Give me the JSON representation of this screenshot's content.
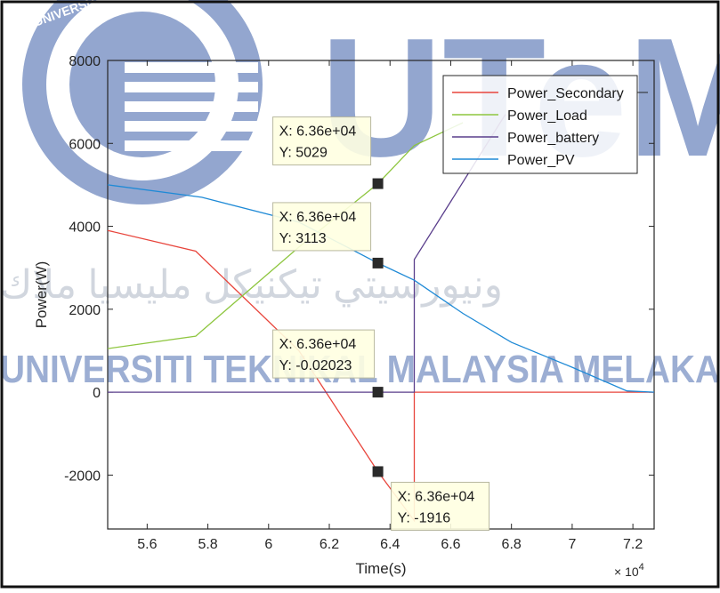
{
  "watermark": {
    "logo_text": "UTeM",
    "seal_text": "UNIVERSITI TEKNIKAL MALAYSIA MELAKA",
    "university_line": "UNIVERSITI TEKNIKAL MALAYSIA MELAKA",
    "jawi_line": "ونيورسيتي تيكنيكل مليسيا ملاك"
  },
  "colors": {
    "axes": "#262626",
    "secondary": "#e8453c",
    "load": "#8ec63f",
    "battery": "#5a3e8c",
    "pv": "#1f8ad6",
    "datatip_bg": "#ffffe1",
    "watermark": "#bcc7da"
  },
  "chart_data": {
    "type": "line",
    "xlabel": "Time(s)",
    "ylabel": "Power(W)",
    "x_exponent_label": "× 10",
    "x_exponent_power": "4",
    "xlim": [
      54700,
      72700
    ],
    "ylim": [
      -3300,
      8000
    ],
    "x_ticks": [
      56000,
      58000,
      60000,
      62000,
      64000,
      66000,
      68000,
      70000,
      72000
    ],
    "x_tick_labels": [
      "5.6",
      "5.8",
      "6",
      "6.2",
      "6.4",
      "6.6",
      "6.8",
      "7",
      "7.2"
    ],
    "y_ticks": [
      -2000,
      0,
      2000,
      4000,
      6000,
      8000
    ],
    "y_tick_labels": [
      "-2000",
      "0",
      "2000",
      "4000",
      "6000",
      "8000"
    ],
    "grid": false,
    "legend_position": "top-right",
    "series": [
      {
        "name": "Power_Secondary",
        "color_key": "secondary",
        "x": [
          54700,
          57600,
          61000,
          63600,
          64800,
          64800,
          72700
        ],
        "y": [
          3900,
          3400,
          1000,
          -1916,
          -3100,
          0,
          0
        ]
      },
      {
        "name": "Power_Load",
        "color_key": "load",
        "x": [
          54700,
          57600,
          61000,
          63600,
          64800,
          66400
        ],
        "y": [
          1050,
          1350,
          3500,
          5029,
          5950,
          6500
        ]
      },
      {
        "name": "Power_battery",
        "color_key": "battery",
        "x": [
          54700,
          64800,
          64800,
          66000,
          67800
        ],
        "y": [
          0,
          0,
          3200,
          4600,
          6700
        ]
      },
      {
        "name": "Power_PV",
        "color_key": "pv",
        "x": [
          54700,
          57800,
          61000,
          63600,
          64800,
          66400,
          68000,
          70000,
          71800,
          72700
        ],
        "y": [
          5000,
          4700,
          4100,
          3113,
          2700,
          1900,
          1200,
          600,
          30,
          0
        ]
      }
    ],
    "datatips": [
      {
        "x_text": "X: 6.36e+04",
        "y_text": "Y: 5029",
        "x": 63600,
        "y": 5029
      },
      {
        "x_text": "X: 6.36e+04",
        "y_text": "Y: 3113",
        "x": 63600,
        "y": 3113
      },
      {
        "x_text": "X: 6.36e+04",
        "y_text": "Y: -0.02023",
        "x": 63600,
        "y": -0.02023
      },
      {
        "x_text": "X: 6.36e+04",
        "y_text": "Y: -1916",
        "x": 63600,
        "y": -1916
      }
    ]
  }
}
